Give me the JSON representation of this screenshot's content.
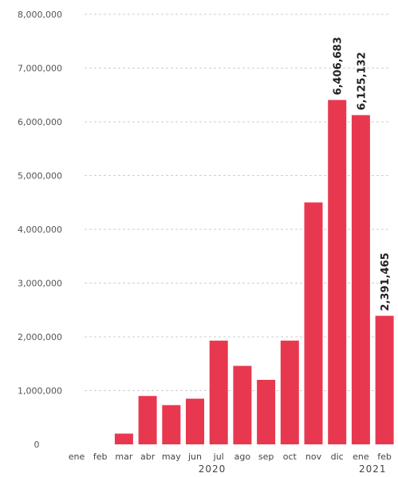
{
  "chart_data": {
    "type": "bar",
    "categories": [
      "ene",
      "feb",
      "mar",
      "abr",
      "may",
      "jun",
      "jul",
      "ago",
      "sep",
      "oct",
      "nov",
      "dic",
      "ene",
      "feb"
    ],
    "values": [
      0,
      0,
      200000,
      900000,
      730000,
      850000,
      1930000,
      1460000,
      1200000,
      1930000,
      4500000,
      6406683,
      6125132,
      2391465
    ],
    "data_labels": [
      {
        "index": 11,
        "text": "6,406,683"
      },
      {
        "index": 12,
        "text": "6,125,132"
      },
      {
        "index": 13,
        "text": "2,391,465"
      }
    ],
    "year_labels": [
      {
        "text": "2020",
        "from": 0,
        "to": 11
      },
      {
        "text": "2021",
        "from": 12,
        "to": 13
      }
    ],
    "yticks": [
      0,
      1000000,
      2000000,
      3000000,
      4000000,
      5000000,
      6000000,
      7000000,
      8000000
    ],
    "ytick_labels": [
      "0",
      "1,000,000",
      "2,000,000",
      "3,000,000",
      "4,000,000",
      "5,000,000",
      "6,000,000",
      "7,000,000",
      "8,000,000"
    ],
    "ylim": [
      0,
      8000000
    ],
    "title": "",
    "xlabel": "",
    "ylabel": "",
    "grid": true,
    "bar_color": "#e8384f"
  }
}
